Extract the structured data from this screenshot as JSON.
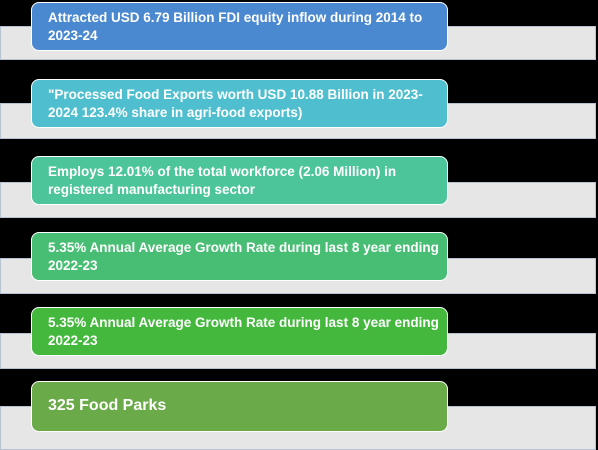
{
  "items": [
    {
      "text": "Attracted USD 6.79 Billion FDI equity inflow during 2014 to 2023-24",
      "color": "#4a88d0"
    },
    {
      "text": "\"Processed Food Exports worth USD 10.88 Billion in 2023-2024 123.4% share in agri-food exports)",
      "color": "#4fbfcf"
    },
    {
      "text": "Employs 12.01% of the total workforce (2.06 Million) in registered manufacturing sector",
      "color": "#4cc59a"
    },
    {
      "text": "5.35% Annual Average Growth Rate during last 8 year ending 2022-23",
      "color": "#47be73"
    },
    {
      "text": "5.35% Annual Average Growth Rate during last 8 year ending 2022-23",
      "color": "#44b83d"
    },
    {
      "text": "325 Food Parks",
      "color": "#6aaa48"
    }
  ]
}
